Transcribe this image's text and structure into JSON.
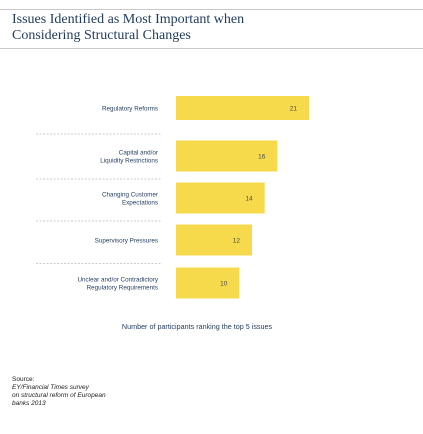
{
  "title_lines": [
    "Issues Identified as Most Important when",
    "Considering Structural Changes"
  ],
  "chart_data": {
    "type": "bar",
    "orientation": "horizontal",
    "categories": [
      [
        "Regulatory Reforms"
      ],
      [
        "Capital and/or",
        "Liquidity Restrictions"
      ],
      [
        "Changing Customer",
        "Expectations"
      ],
      [
        "Supervisory Pressures"
      ],
      [
        "Unclear and/or Contradictory",
        "Regulatory Requirements"
      ]
    ],
    "values": [
      21,
      16,
      14,
      12,
      10
    ],
    "xlabel": "Number of participants ranking the top 5 issues",
    "colors": {
      "bar": "#f7d94c",
      "bar_label": "#4a4a4a",
      "divider": "#bdbdbd",
      "category_text": "#1f3a5f",
      "xlabel_text": "#1f3a5f"
    }
  },
  "source": {
    "prefix": "Source:",
    "text_lines": [
      "EY/Financial Times survey",
      "on structural reform of European",
      "banks 2013"
    ]
  }
}
